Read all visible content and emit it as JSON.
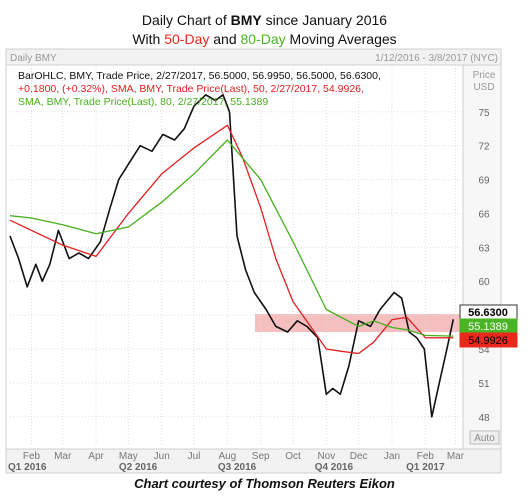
{
  "title": {
    "prefix": "Daily Chart of ",
    "ticker": "BMY",
    "suffix": " since January 2016",
    "line2_pre": "With ",
    "ma50": "50-Day",
    "line2_mid": " and ",
    "ma80": "80-Day",
    "line2_post": " Moving Averages"
  },
  "caption": "Chart courtesy of Thomson Reuters Eikon",
  "colors": {
    "price": "#111111",
    "sma50": "#e02020",
    "sma80": "#46b01e",
    "band": "#f4b8b8",
    "grid": "#dedede"
  },
  "chart_data": {
    "type": "line",
    "panel_label": "Daily BMY",
    "date_range": "1/12/2016 - 3/8/2017 (NYC)",
    "y_axis_title": [
      "Price",
      "USD"
    ],
    "legend": [
      "BarOHLC, BMY, Trade Price, 2/27/2017, 56.5000, 56.9950, 56.5000, 56.6300,",
      "+0.1800, (+0.32%), SMA, BMY, Trade Price(Last), 50, 2/27/2017, 54.9926,",
      "SMA, BMY, Trade Price(Last), 80, 2/27/2017, 55.1389"
    ],
    "yticks": [
      48,
      51,
      54,
      57,
      60,
      63,
      66,
      69,
      72,
      75
    ],
    "ylim": [
      45.5,
      78.7
    ],
    "xlim": [
      "2016-01-12",
      "2017-03-08"
    ],
    "month_labels": [
      "Feb",
      "Mar",
      "Apr",
      "May",
      "Jun",
      "Jul",
      "Aug",
      "Sep",
      "Oct",
      "Nov",
      "Dec",
      "Jan",
      "Feb",
      "Mar"
    ],
    "month_dates": [
      "2016-02-01",
      "2016-03-01",
      "2016-04-01",
      "2016-05-01",
      "2016-06-01",
      "2016-07-01",
      "2016-08-01",
      "2016-09-01",
      "2016-10-01",
      "2016-11-01",
      "2016-12-01",
      "2017-01-01",
      "2017-02-01",
      "2017-03-01"
    ],
    "quarter_labels": [
      "Q1 2016",
      "Q2 2016",
      "Q3 2016",
      "Q4 2016",
      "Q1 2017"
    ],
    "quarter_dates": [
      "2016-01-28",
      "2016-05-10",
      "2016-08-10",
      "2016-11-08",
      "2017-02-01"
    ],
    "price_tag": "56.6300",
    "sma80_tag": "55.1389",
    "sma50_tag": "54.9926",
    "auto_label": "Auto",
    "band": [
      55.5,
      57.1
    ],
    "series": [
      {
        "name": "BMY",
        "x": [
          "2016-01-12",
          "2016-01-20",
          "2016-01-28",
          "2016-02-05",
          "2016-02-11",
          "2016-02-18",
          "2016-02-26",
          "2016-03-07",
          "2016-03-16",
          "2016-03-25",
          "2016-04-05",
          "2016-04-14",
          "2016-04-22",
          "2016-05-02",
          "2016-05-12",
          "2016-05-23",
          "2016-06-02",
          "2016-06-13",
          "2016-06-22",
          "2016-07-01",
          "2016-07-12",
          "2016-07-21",
          "2016-07-28",
          "2016-08-03",
          "2016-08-10",
          "2016-08-18",
          "2016-08-26",
          "2016-09-06",
          "2016-09-15",
          "2016-09-26",
          "2016-10-05",
          "2016-10-14",
          "2016-10-24",
          "2016-11-01",
          "2016-11-07",
          "2016-11-14",
          "2016-11-22",
          "2016-12-01",
          "2016-12-12",
          "2016-12-21",
          "2017-01-03",
          "2017-01-10",
          "2017-01-17",
          "2017-01-24",
          "2017-01-31",
          "2017-02-07",
          "2017-02-14",
          "2017-02-21",
          "2017-02-27"
        ],
        "values": [
          64.0,
          62.0,
          59.5,
          61.5,
          60.0,
          61.5,
          64.5,
          62.0,
          62.5,
          62.0,
          63.5,
          66.5,
          69.0,
          70.5,
          72.0,
          71.5,
          73.0,
          72.5,
          73.5,
          75.5,
          76.5,
          76.0,
          76.5,
          75.0,
          64.0,
          61.0,
          59.0,
          57.5,
          56.0,
          55.5,
          56.5,
          56.0,
          55.0,
          50.0,
          50.5,
          50.0,
          52.5,
          56.5,
          56.0,
          57.5,
          59.0,
          58.5,
          55.5,
          55.0,
          54.0,
          48.0,
          51.0,
          54.0,
          56.63
        ]
      },
      {
        "name": "SMA 50",
        "x": [
          "2016-01-12",
          "2016-02-01",
          "2016-03-01",
          "2016-04-01",
          "2016-05-01",
          "2016-06-01",
          "2016-07-01",
          "2016-08-01",
          "2016-08-15",
          "2016-09-01",
          "2016-09-15",
          "2016-10-01",
          "2016-10-15",
          "2016-11-01",
          "2016-11-15",
          "2016-12-01",
          "2016-12-15",
          "2017-01-01",
          "2017-01-15",
          "2017-02-01",
          "2017-02-27"
        ],
        "values": [
          65.4,
          64.5,
          63.2,
          62.2,
          66.0,
          69.5,
          71.8,
          73.8,
          71.0,
          66.5,
          62.0,
          58.2,
          56.3,
          54.0,
          53.8,
          53.6,
          54.6,
          56.6,
          56.8,
          55.0,
          54.99
        ]
      },
      {
        "name": "SMA 80",
        "x": [
          "2016-01-12",
          "2016-02-01",
          "2016-03-01",
          "2016-04-01",
          "2016-05-01",
          "2016-06-01",
          "2016-07-01",
          "2016-08-01",
          "2016-09-01",
          "2016-10-01",
          "2016-11-01",
          "2016-12-01",
          "2016-12-15",
          "2017-01-01",
          "2017-01-15",
          "2017-02-01",
          "2017-02-27"
        ],
        "values": [
          65.8,
          65.6,
          65.0,
          64.2,
          64.8,
          67.0,
          69.5,
          72.5,
          69.0,
          63.5,
          57.5,
          56.0,
          56.5,
          55.9,
          55.7,
          55.2,
          55.14
        ]
      }
    ]
  }
}
